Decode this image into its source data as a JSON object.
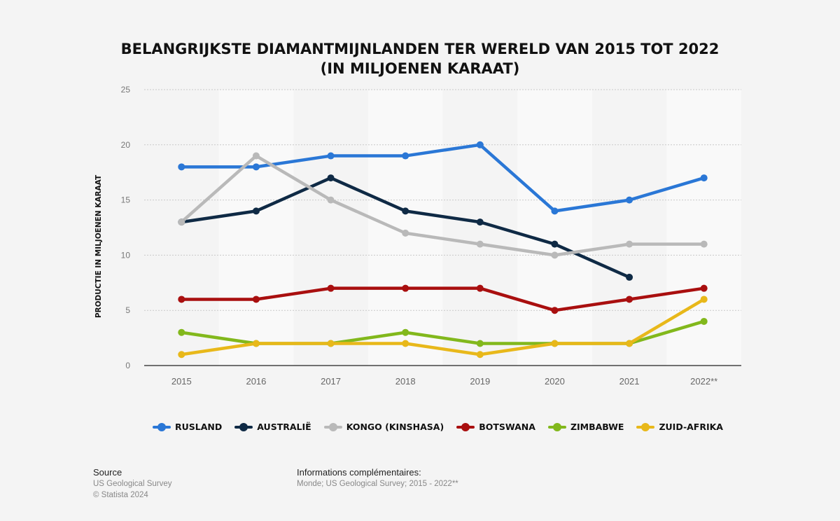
{
  "title_line1": "BELANGRIJKSTE DIAMANTMIJNLANDEN TER WERELD VAN 2015 TOT 2022",
  "title_line2": "(IN MILJOENEN KARAAT)",
  "chart_data": {
    "type": "line",
    "ylabel": "PRODUCTIE IN MILJOENEN KARAAT",
    "xlabel": "",
    "categories": [
      "2015",
      "2016",
      "2017",
      "2018",
      "2019",
      "2020",
      "2021",
      "2022**"
    ],
    "ylim": [
      0,
      25
    ],
    "yticks": [
      0,
      5,
      10,
      15,
      20,
      25
    ],
    "grid": true,
    "legend_position": "bottom",
    "series": [
      {
        "name": "RUSLAND",
        "color": "#2a77d6",
        "values": [
          18,
          18,
          19,
          19,
          20,
          14,
          15,
          17
        ]
      },
      {
        "name": "AUSTRALIË",
        "color": "#0f2a45",
        "values": [
          13,
          14,
          17,
          14,
          13,
          11,
          8,
          null
        ]
      },
      {
        "name": "KONGO (KINSHASA)",
        "color": "#b9b9b9",
        "values": [
          13,
          19,
          15,
          12,
          11,
          10,
          11,
          11
        ]
      },
      {
        "name": "BOTSWANA",
        "color": "#a90f0f",
        "values": [
          6,
          6,
          7,
          7,
          7,
          5,
          6,
          7
        ]
      },
      {
        "name": "ZIMBABWE",
        "color": "#82b81c",
        "values": [
          3,
          2,
          2,
          3,
          2,
          2,
          2,
          4
        ]
      },
      {
        "name": "ZUID-AFRIKA",
        "color": "#e8b81a",
        "values": [
          1,
          2,
          2,
          2,
          1,
          2,
          2,
          6
        ]
      }
    ]
  },
  "footer": {
    "source_label": "Source",
    "source_line1": "US Geological Survey",
    "source_line2": "© Statista 2024",
    "info_label": "Informations complémentaires:",
    "info_line": "Monde; US Geological Survey; 2015 - 2022**"
  }
}
